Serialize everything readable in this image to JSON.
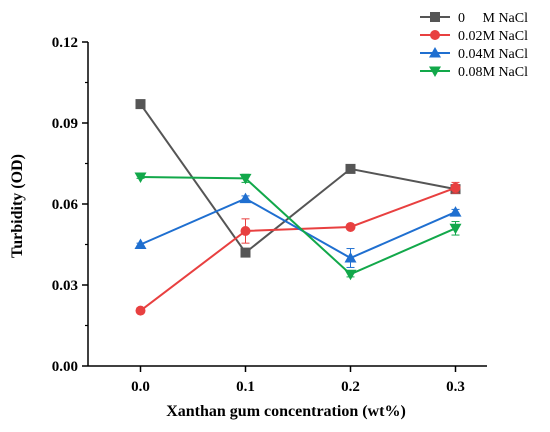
{
  "chart_data": {
    "type": "line",
    "title": "",
    "xlabel": "Xanthan gum  concentration (wt%)",
    "ylabel": "Turbidity (OD)",
    "x": [
      0.0,
      0.1,
      0.2,
      0.3
    ],
    "x_tick_labels": [
      "0.0",
      "0.1",
      "0.2",
      "0.3"
    ],
    "xlim": [
      -0.05,
      0.33
    ],
    "ylim": [
      0.0,
      0.12
    ],
    "y_ticks": [
      0.0,
      0.03,
      0.06,
      0.09,
      0.12
    ],
    "y_tick_labels": [
      "0.00",
      "0.03",
      "0.06",
      "0.09",
      "0.12"
    ],
    "grid": false,
    "legend_position": "top-right",
    "series": [
      {
        "name": "0     M NaCl",
        "color": "#555555",
        "marker": "square",
        "values": [
          0.097,
          0.042,
          0.073,
          0.0655
        ],
        "errors": [
          0.0005,
          0.001,
          0.001,
          0.001
        ]
      },
      {
        "name": "0.02M NaCl",
        "color": "#e84040",
        "marker": "circle",
        "values": [
          0.0205,
          0.05,
          0.0515,
          0.066
        ],
        "errors": [
          0.001,
          0.0045,
          0.0005,
          0.002
        ]
      },
      {
        "name": "0.04M NaCl",
        "color": "#1f6fd0",
        "marker": "triangle-up",
        "values": [
          0.045,
          0.062,
          0.04,
          0.057
        ],
        "errors": [
          0.0005,
          0.001,
          0.0035,
          0.001
        ]
      },
      {
        "name": "0.08M NaCl",
        "color": "#12a84a",
        "marker": "triangle-down",
        "values": [
          0.07,
          0.0695,
          0.034,
          0.051
        ],
        "errors": [
          0.0005,
          0.0015,
          0.001,
          0.0025
        ]
      }
    ]
  }
}
